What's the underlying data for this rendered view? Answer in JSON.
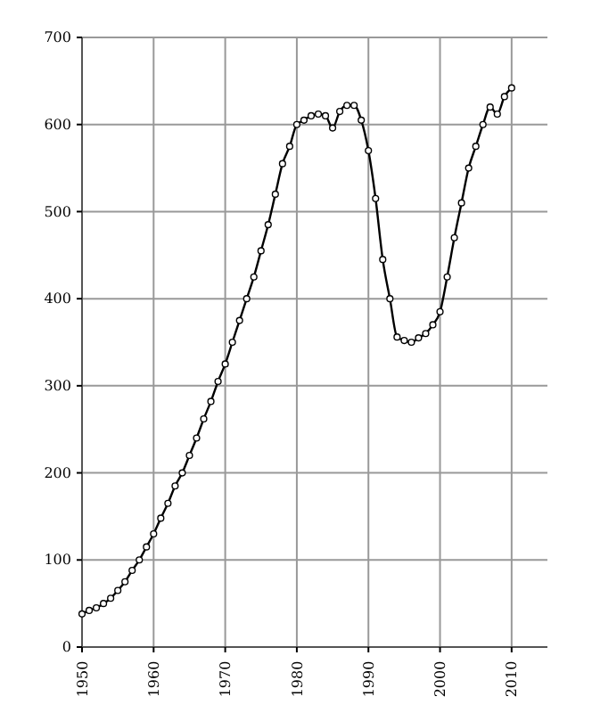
{
  "chart_data": {
    "type": "line",
    "x": [
      1950,
      1951,
      1952,
      1953,
      1954,
      1955,
      1956,
      1957,
      1958,
      1959,
      1960,
      1961,
      1962,
      1963,
      1964,
      1965,
      1966,
      1967,
      1968,
      1969,
      1970,
      1971,
      1972,
      1973,
      1974,
      1975,
      1976,
      1977,
      1978,
      1979,
      1980,
      1981,
      1982,
      1983,
      1984,
      1985,
      1986,
      1987,
      1988,
      1989,
      1990,
      1991,
      1992,
      1993,
      1994,
      1995,
      1996,
      1997,
      1998,
      1999,
      2000,
      2001,
      2002,
      2003,
      2004,
      2005,
      2006,
      2007,
      2008,
      2009,
      2010
    ],
    "series": [
      {
        "color": "#000000",
        "values": [
          38,
          42,
          45,
          50,
          56,
          65,
          75,
          88,
          100,
          115,
          130,
          148,
          165,
          185,
          200,
          220,
          240,
          262,
          282,
          305,
          325,
          350,
          375,
          400,
          425,
          455,
          485,
          520,
          555,
          575,
          600,
          605,
          610,
          612,
          610,
          596,
          615,
          622,
          622,
          605,
          570,
          515,
          445,
          400,
          356,
          352,
          350,
          355,
          360,
          370,
          385,
          425,
          470,
          510,
          550,
          575,
          600,
          620,
          612,
          632,
          642
        ]
      }
    ],
    "xlim": [
      1950,
      2015
    ],
    "ylim": [
      0,
      700
    ],
    "xticks": [
      1950,
      1960,
      1970,
      1980,
      1990,
      2000,
      2010
    ],
    "yticks": [
      0,
      100,
      200,
      300,
      400,
      500,
      600,
      700
    ],
    "grid": true,
    "marker": "circle",
    "line_style": "solid"
  }
}
